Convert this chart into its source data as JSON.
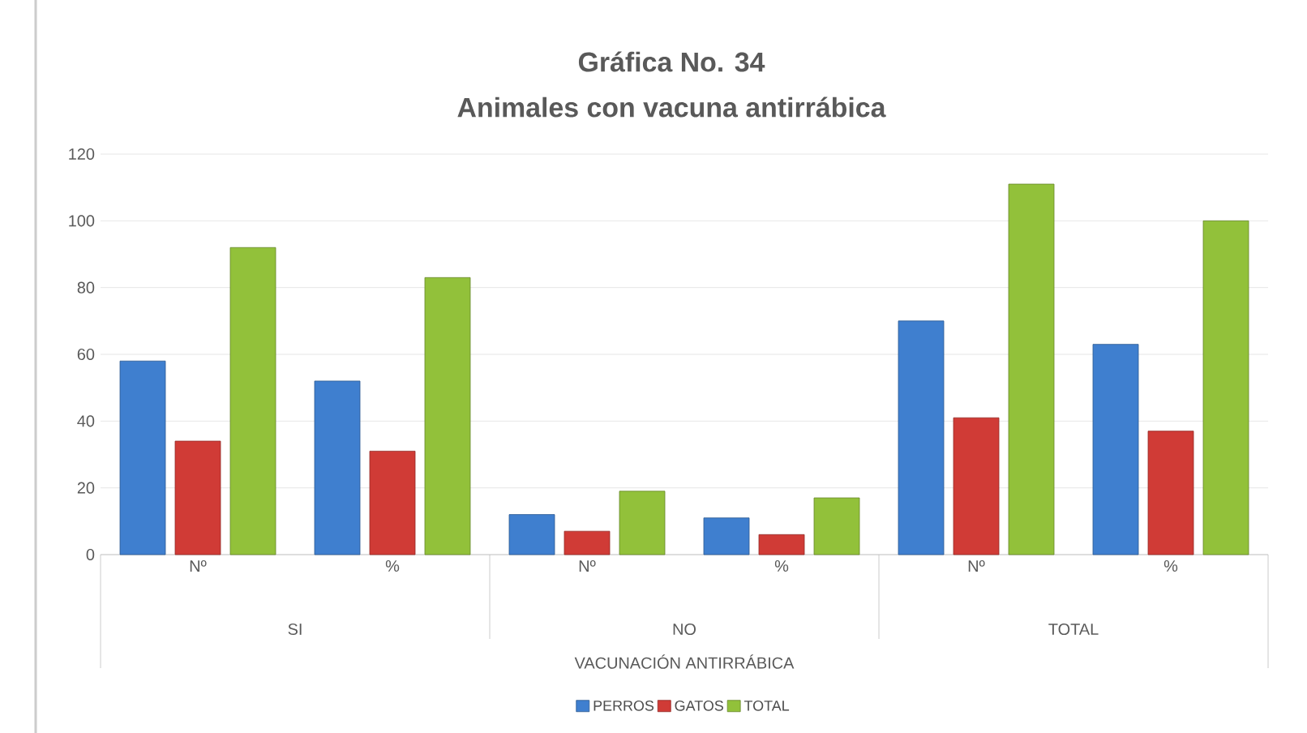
{
  "chart_data": {
    "type": "bar",
    "title": "Gráfica No. 34",
    "subtitle": "Animales con vacuna antirrábica",
    "categories": [
      "Nº",
      "%",
      "Nº",
      "%",
      "Nº",
      "%"
    ],
    "series": [
      {
        "name": "PERROS",
        "color": "#3f7fcf",
        "values": [
          58,
          52,
          12,
          11,
          70,
          63
        ]
      },
      {
        "name": "GATOS",
        "color": "#d03b36",
        "values": [
          34,
          31,
          7,
          6,
          41,
          37
        ]
      },
      {
        "name": "TOTAL",
        "color": "#92c13a",
        "values": [
          92,
          83,
          19,
          17,
          111,
          100
        ]
      }
    ],
    "annotations": [
      "SI",
      "NO",
      "TOTAL",
      "VACUNACIÓN ANTIRRÁBICA"
    ],
    "ylim": [
      0,
      120
    ],
    "yticks": [
      0,
      20,
      40,
      60,
      80,
      100,
      120
    ],
    "grid": "y",
    "legend": "bottom"
  }
}
